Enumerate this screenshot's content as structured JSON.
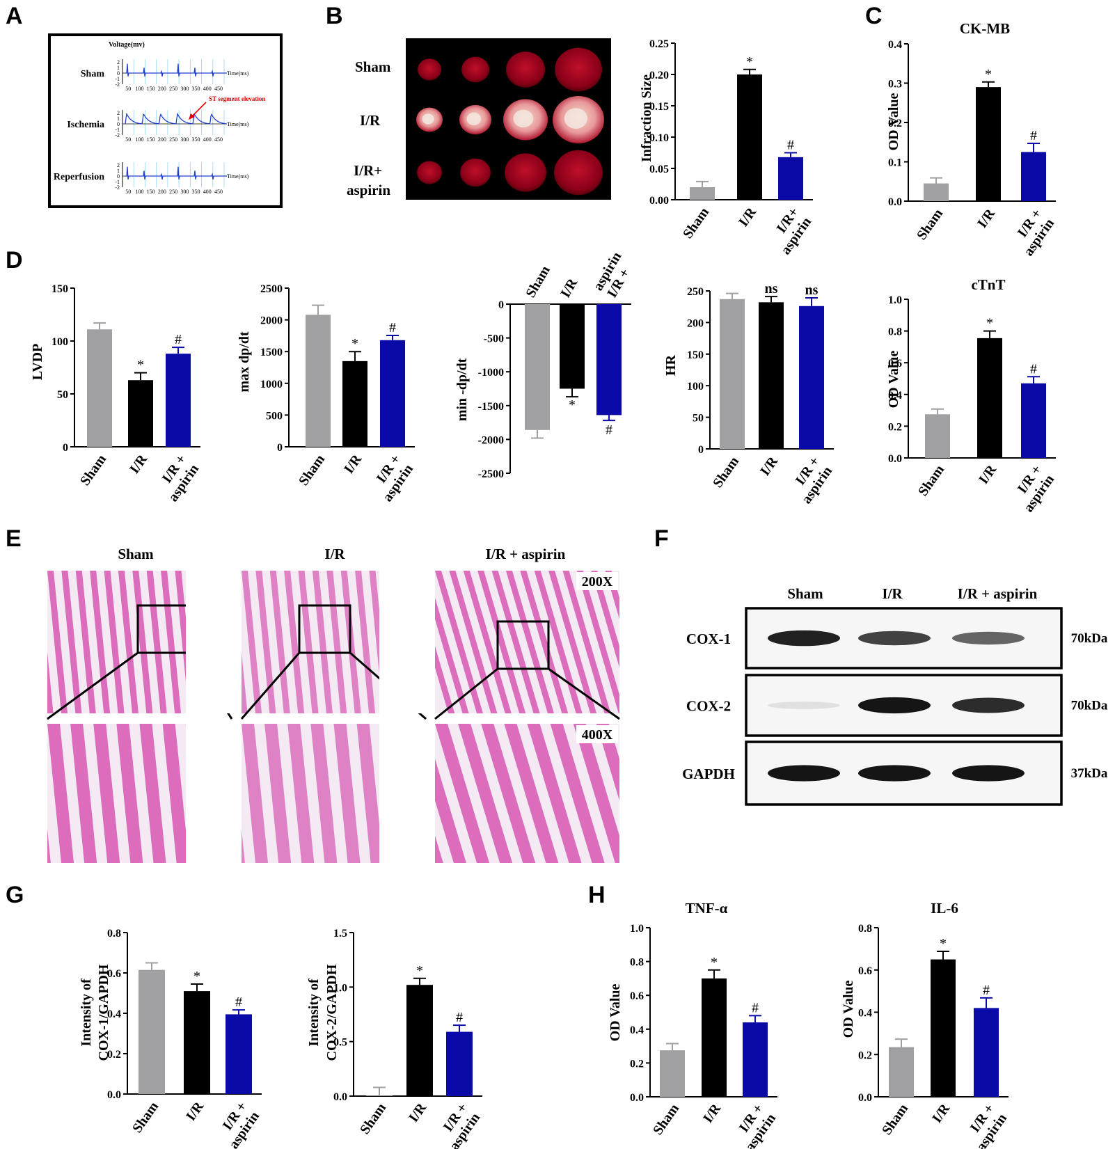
{
  "panel_letters": [
    "A",
    "B",
    "C",
    "D",
    "E",
    "F",
    "G",
    "H"
  ],
  "colors": {
    "sham": "#a0a0a2",
    "ir": "#000000",
    "aspirin": "#0a0aa8",
    "ecg_trace": "#1e3fd0",
    "ecg_grid": "#8fd8f0",
    "annotation_red": "#e00000",
    "tissue_pink": "#d85fb6",
    "tissue_bg": "#f4eaf3"
  },
  "ecg": {
    "ylabel": "Voltage(mv)",
    "xlabel": "Time(ms)",
    "yticks": [
      "2",
      "1",
      "0",
      "-1",
      "-2"
    ],
    "xticks": [
      "50",
      "100",
      "150",
      "200",
      "250",
      "300",
      "350",
      "400",
      "450"
    ],
    "rows": [
      "Sham",
      "Ischemia",
      "Reperfusion"
    ],
    "annotation": "ST segment elevation"
  },
  "ttc": {
    "rows": [
      "Sham",
      "I/R",
      "I/R+",
      "aspirin"
    ]
  },
  "histology": {
    "columns": [
      "Sham",
      "I/R",
      "I/R + aspirin"
    ],
    "mag_low": "200X",
    "mag_high": "400X"
  },
  "western": {
    "lanes": [
      "Sham",
      "I/R",
      "I/R + aspirin"
    ],
    "bands": [
      {
        "name": "COX-1",
        "kda": "70kDa",
        "intensity": [
          0.9,
          0.75,
          0.6
        ]
      },
      {
        "name": "COX-2",
        "kda": "70kDa",
        "intensity": [
          0.05,
          0.95,
          0.85
        ]
      },
      {
        "name": "GAPDH",
        "kda": "37kDa",
        "intensity": [
          0.95,
          0.95,
          0.95
        ]
      }
    ]
  },
  "chart_data": [
    {
      "id": "infarct",
      "type": "bar",
      "title": "",
      "ylabel": "Infraction Size",
      "categories": [
        "Sham",
        "I/R",
        "I/R+|aspirin"
      ],
      "values": [
        0.02,
        0.2,
        0.068
      ],
      "errors": [
        0.009,
        0.008,
        0.007
      ],
      "marks": [
        "",
        "*",
        "#"
      ],
      "ylim": [
        0,
        0.25
      ],
      "yticks": [
        "0.00",
        "0.05",
        "0.10",
        "0.15",
        "0.20",
        "0.25"
      ]
    },
    {
      "id": "ckmb",
      "type": "bar",
      "title": "CK-MB",
      "ylabel": "OD Value",
      "categories": [
        "Sham",
        "I/R",
        "I/R +|aspirin"
      ],
      "values": [
        0.045,
        0.29,
        0.125
      ],
      "errors": [
        0.014,
        0.013,
        0.022
      ],
      "marks": [
        "",
        "*",
        "#"
      ],
      "ylim": [
        0,
        0.4
      ],
      "yticks": [
        "0.0",
        "0.1",
        "0.2",
        "0.3",
        "0.4"
      ]
    },
    {
      "id": "lvdp",
      "type": "bar",
      "title": "",
      "ylabel": "LVDP",
      "categories": [
        "Sham",
        "I/R",
        "I/R +|aspirin"
      ],
      "values": [
        111,
        63,
        88
      ],
      "errors": [
        6,
        7,
        6
      ],
      "marks": [
        "",
        "*",
        "#"
      ],
      "ylim": [
        0,
        150
      ],
      "yticks": [
        "0",
        "50",
        "100",
        "150"
      ]
    },
    {
      "id": "maxdp",
      "type": "bar",
      "title": "",
      "ylabel": "max dp/dt",
      "categories": [
        "Sham",
        "I/R",
        "I/R +|aspirin"
      ],
      "values": [
        2080,
        1350,
        1680
      ],
      "errors": [
        150,
        150,
        75
      ],
      "marks": [
        "",
        "*",
        "#"
      ],
      "ylim": [
        0,
        2500
      ],
      "yticks": [
        "0",
        "500",
        "1000",
        "1500",
        "2000",
        "2500"
      ]
    },
    {
      "id": "mindp",
      "type": "bar",
      "title": "",
      "ylabel": "min -dp/dt",
      "categories": [
        "Sham",
        "I/R",
        "I/R +|aspirin"
      ],
      "values": [
        -1860,
        -1250,
        -1640
      ],
      "errors": [
        120,
        120,
        80
      ],
      "marks": [
        "",
        "*",
        "#"
      ],
      "ylim": [
        -2500,
        0
      ],
      "yticks": [
        "0",
        "-500",
        "-1000",
        "-1500",
        "-2000",
        "-2500"
      ]
    },
    {
      "id": "hr",
      "type": "bar",
      "title": "",
      "ylabel": "HR",
      "categories": [
        "Sham",
        "I/R",
        "I/R +|aspirin"
      ],
      "values": [
        237,
        232,
        226
      ],
      "errors": [
        9,
        9,
        13
      ],
      "marks": [
        "",
        "ns",
        "ns"
      ],
      "ylim": [
        0,
        250
      ],
      "yticks": [
        "0",
        "50",
        "100",
        "150",
        "200",
        "250"
      ]
    },
    {
      "id": "ctnt",
      "type": "bar",
      "title": "cTnT",
      "ylabel": "OD Value",
      "categories": [
        "Sham",
        "I/R",
        "I/R +|aspirin"
      ],
      "values": [
        0.275,
        0.755,
        0.47
      ],
      "errors": [
        0.033,
        0.045,
        0.042
      ],
      "marks": [
        "",
        "*",
        "#"
      ],
      "ylim": [
        0,
        1.0
      ],
      "yticks": [
        "0.0",
        "0.2",
        "0.4",
        "0.6",
        "0.8",
        "1.0"
      ]
    },
    {
      "id": "cox1",
      "type": "bar",
      "title": "",
      "ylabel": "Intensity of|COX-1/GAPDH",
      "categories": [
        "Sham",
        "I/R",
        "I/R +|aspirin"
      ],
      "values": [
        0.615,
        0.51,
        0.395
      ],
      "errors": [
        0.035,
        0.035,
        0.022
      ],
      "marks": [
        "",
        "*",
        "#"
      ],
      "ylim": [
        0,
        0.8
      ],
      "yticks": [
        "0.0",
        "0.2",
        "0.4",
        "0.6",
        "0.8"
      ]
    },
    {
      "id": "cox2",
      "type": "bar",
      "title": "",
      "ylabel": "Intensity of|COX-2/GAPDH",
      "categories": [
        "Sham",
        "I/R",
        "I/R +|aspirin"
      ],
      "values": [
        0.005,
        1.02,
        0.59
      ],
      "errors": [
        0.075,
        0.06,
        0.06
      ],
      "marks": [
        "",
        "*",
        "#"
      ],
      "ylim": [
        0,
        1.5
      ],
      "yticks": [
        "0.0",
        "0.5",
        "1.0",
        "1.5"
      ]
    },
    {
      "id": "tnfa",
      "type": "bar",
      "title": "TNF-α",
      "ylabel": "OD Value",
      "categories": [
        "Sham",
        "I/R",
        "I/R +|aspirin"
      ],
      "values": [
        0.275,
        0.7,
        0.44
      ],
      "errors": [
        0.04,
        0.05,
        0.04
      ],
      "marks": [
        "",
        "*",
        "#"
      ],
      "ylim": [
        0,
        1.0
      ],
      "yticks": [
        "0.0",
        "0.2",
        "0.4",
        "0.6",
        "0.8",
        "1.0"
      ]
    },
    {
      "id": "il6",
      "type": "bar",
      "title": "IL-6",
      "ylabel": "OD Value",
      "categories": [
        "Sham",
        "I/R",
        "I/R +|aspirin"
      ],
      "values": [
        0.235,
        0.65,
        0.42
      ],
      "errors": [
        0.038,
        0.038,
        0.048
      ],
      "marks": [
        "",
        "*",
        "#"
      ],
      "ylim": [
        0,
        0.8
      ],
      "yticks": [
        "0.0",
        "0.2",
        "0.4",
        "0.6",
        "0.8"
      ]
    }
  ]
}
